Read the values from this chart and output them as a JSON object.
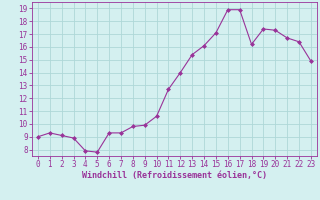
{
  "x": [
    0,
    1,
    2,
    3,
    4,
    5,
    6,
    7,
    8,
    9,
    10,
    11,
    12,
    13,
    14,
    15,
    16,
    17,
    18,
    19,
    20,
    21,
    22,
    23
  ],
  "y": [
    9.0,
    9.3,
    9.1,
    8.9,
    7.9,
    7.8,
    9.3,
    9.3,
    9.8,
    9.9,
    10.6,
    12.7,
    14.0,
    15.4,
    16.1,
    17.1,
    18.9,
    18.9,
    16.2,
    17.4,
    17.3,
    16.7,
    16.4,
    14.9
  ],
  "line_color": "#993399",
  "marker": "D",
  "marker_size": 2.0,
  "background_color": "#d4f0f0",
  "grid_color": "#aed8d8",
  "xlabel": "Windchill (Refroidissement éolien,°C)",
  "xlabel_color": "#993399",
  "tick_color": "#993399",
  "ylim": [
    7.5,
    19.5
  ],
  "xlim": [
    -0.5,
    23.5
  ],
  "yticks": [
    8,
    9,
    10,
    11,
    12,
    13,
    14,
    15,
    16,
    17,
    18,
    19
  ],
  "xticks": [
    0,
    1,
    2,
    3,
    4,
    5,
    6,
    7,
    8,
    9,
    10,
    11,
    12,
    13,
    14,
    15,
    16,
    17,
    18,
    19,
    20,
    21,
    22,
    23
  ],
  "spine_color": "#993399",
  "tick_label_size": 5.5,
  "xlabel_size": 6.0,
  "xlabel_weight": "bold",
  "linewidth": 0.8
}
